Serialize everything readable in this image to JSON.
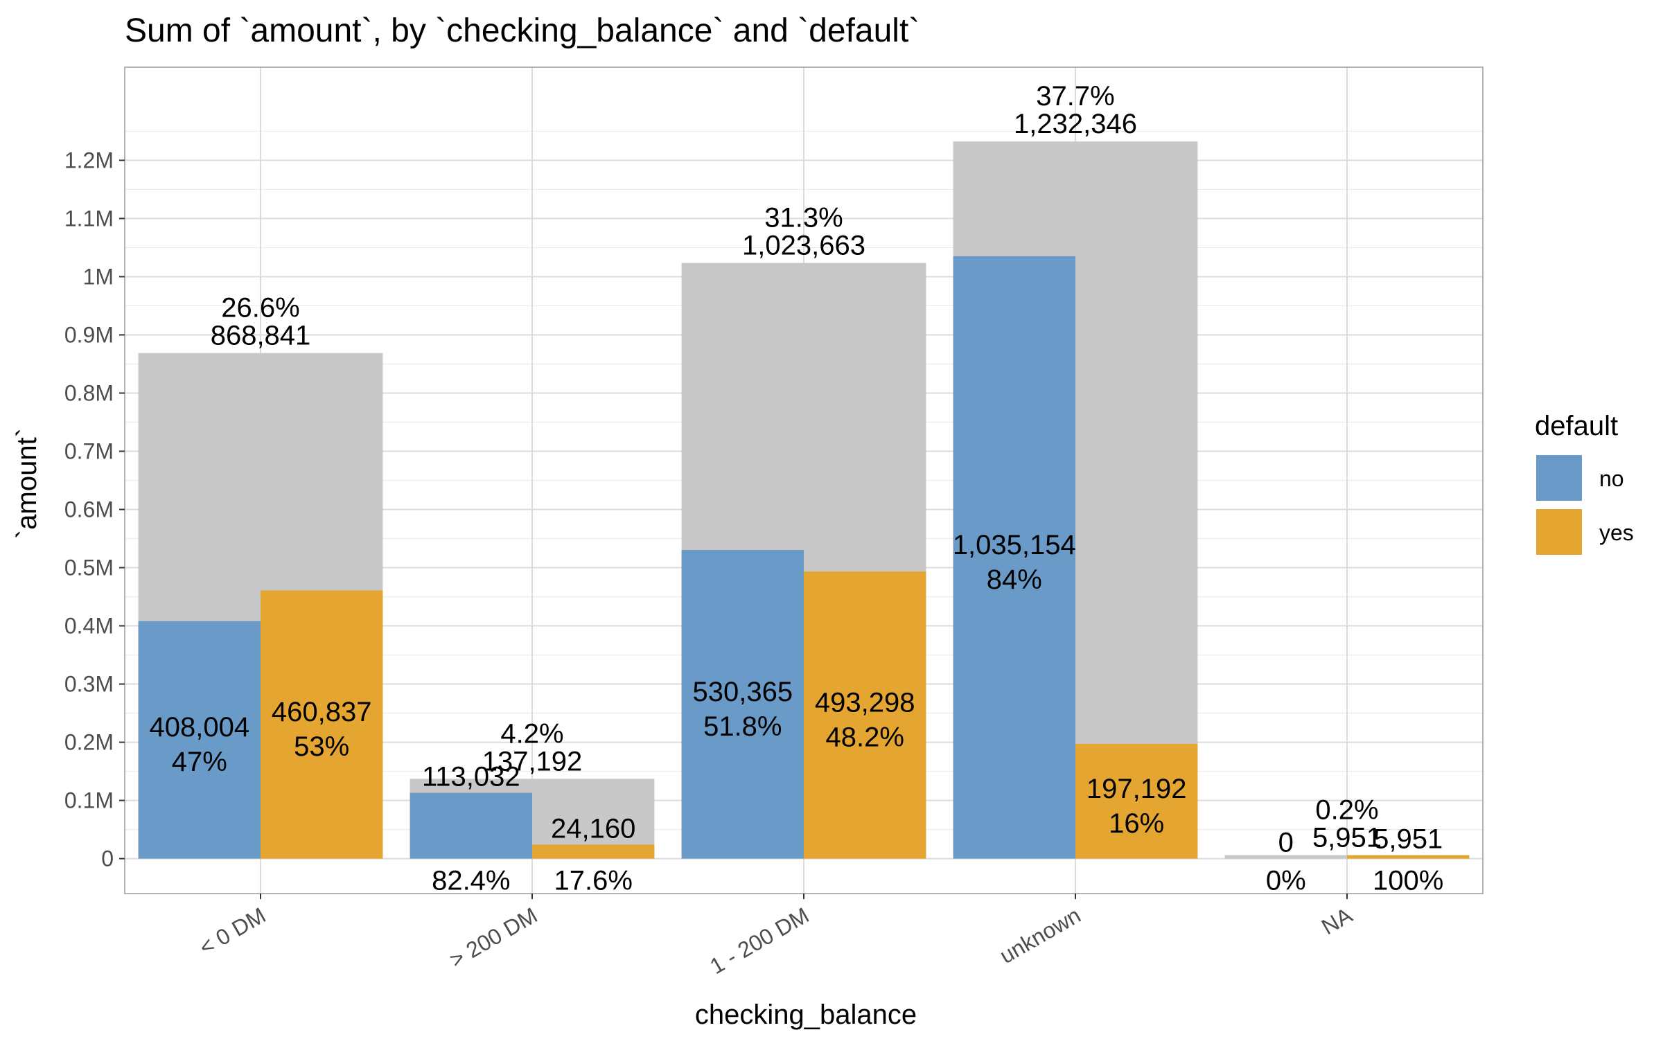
{
  "chart_data": {
    "type": "bar",
    "title": "Sum of `amount`, by `checking_balance` and `default`",
    "xlabel": "checking_balance",
    "ylabel": "`amount`",
    "categories": [
      "< 0 DM",
      "> 200 DM",
      "1 - 200 DM",
      "unknown",
      "NA"
    ],
    "totals": [
      868841,
      137192,
      1023663,
      1232346,
      5951
    ],
    "total_labels": [
      "868,841",
      "137,192",
      "1,023,663",
      "1,232,346",
      "5,951"
    ],
    "total_pct_labels": [
      "26.6%",
      "4.2%",
      "31.3%",
      "37.7%",
      "0.2%"
    ],
    "series": [
      {
        "name": "no",
        "color": "#6a9ac7",
        "values": [
          408004,
          113032,
          530365,
          1035154,
          0
        ],
        "value_labels": [
          "408,004",
          "113,032",
          "530,365",
          "1,035,154",
          "0"
        ],
        "pct_labels": [
          "47%",
          "82.4%",
          "51.8%",
          "84%",
          "0%"
        ]
      },
      {
        "name": "yes",
        "color": "#e5a531",
        "values": [
          460837,
          24160,
          493298,
          197192,
          5951
        ],
        "value_labels": [
          "460,837",
          "24,160",
          "493,298",
          "197,192",
          "5,951"
        ],
        "pct_labels": [
          "53%",
          "17.6%",
          "48.2%",
          "16%",
          "100%"
        ]
      }
    ],
    "total_bar_color": "#c8c8c8",
    "ylim": [
      -60000,
      1360000
    ],
    "yticks": [
      0,
      100000,
      200000,
      300000,
      400000,
      500000,
      600000,
      700000,
      800000,
      900000,
      1000000,
      1100000,
      1200000
    ],
    "ytick_labels": [
      "0",
      "0.1M",
      "0.2M",
      "0.3M",
      "0.4M",
      "0.5M",
      "0.6M",
      "0.7M",
      "0.8M",
      "0.9M",
      "1M",
      "1.1M",
      "1.2M"
    ],
    "legend_title": "default",
    "legend_position": "right",
    "grid": true
  }
}
